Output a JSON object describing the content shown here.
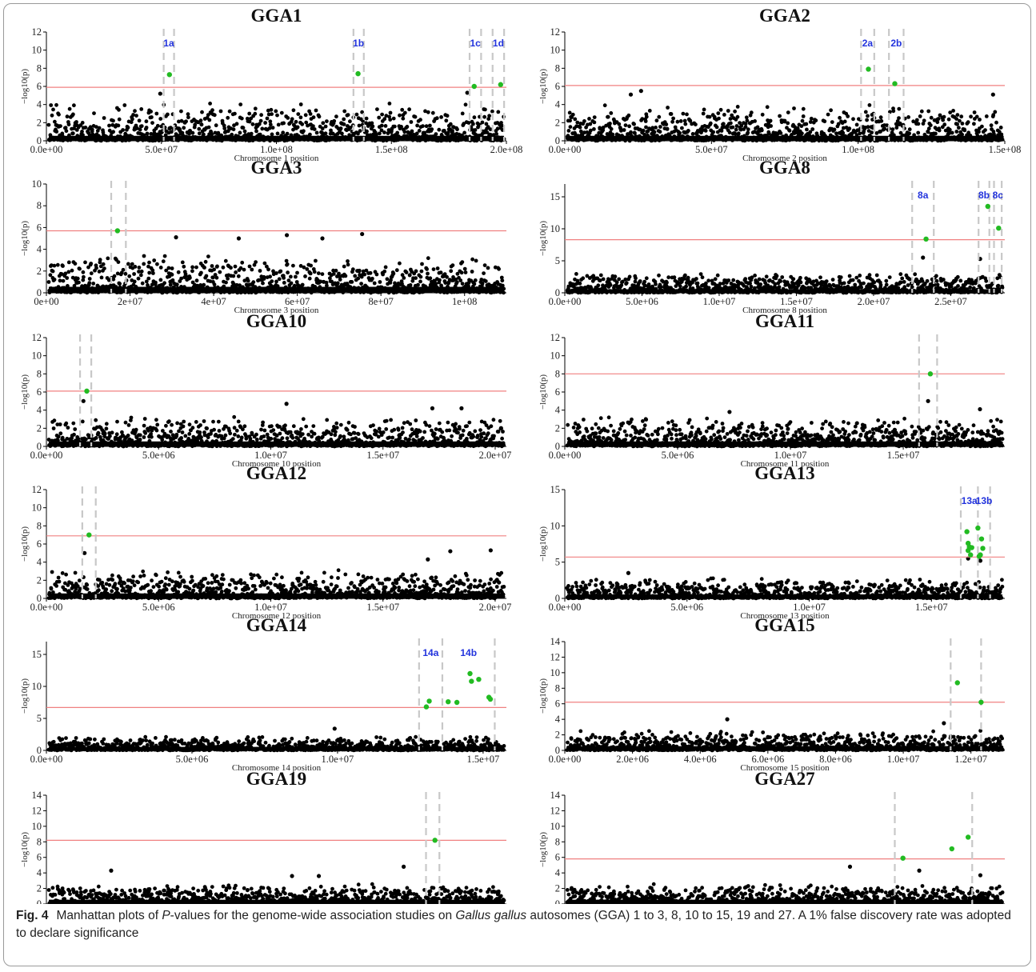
{
  "colors": {
    "points": "#000000",
    "significant": "#22bb22",
    "threshold": "#f08080",
    "region_line": "#c8c8c8",
    "region_label": "#2233dd"
  },
  "caption": {
    "label": "Fig. 4",
    "text_before": "Manhattan plots of ",
    "p_italic": "P",
    "text_mid": "-values for the genome-wide association studies on ",
    "species_italic": "Gallus gallus",
    "text_after": " autosomes (GGA) 1 to 3, 8, 10 to 15, 19 and 27. A 1% false discovery rate was adopted to declare significance"
  },
  "chart_data": [
    {
      "type": "scatter",
      "title": "GGA1",
      "xlabel": "Chromosome 1 position",
      "ylabel": "−log10(p)",
      "xlim": [
        0,
        200000000
      ],
      "ylim": [
        0,
        12
      ],
      "xticks": [
        0,
        50000000,
        100000000,
        150000000,
        200000000
      ],
      "xtick_labels": [
        "0.0e+00",
        "5.0e+07",
        "1.0e+08",
        "1.5e+08",
        "2.0e+08"
      ],
      "yticks": [
        0,
        2,
        4,
        6,
        8,
        10,
        12
      ],
      "threshold": 5.9,
      "background_max": 4.2,
      "region_lines": [
        51000000,
        55500000,
        133500000,
        138000000,
        184000000,
        189000000,
        194000000,
        199000000
      ],
      "region_labels": [
        {
          "text": "1a",
          "x": 53200000
        },
        {
          "text": "1b",
          "x": 135700000
        },
        {
          "text": "1c",
          "x": 186500000
        },
        {
          "text": "1d",
          "x": 196500000
        }
      ],
      "peaks": [
        {
          "x": 49500000,
          "y": 5.2
        },
        {
          "x": 183000000,
          "y": 5.3
        }
      ],
      "significant": [
        {
          "x": 53500000,
          "y": 7.3
        },
        {
          "x": 135500000,
          "y": 7.4
        },
        {
          "x": 186000000,
          "y": 6.0
        },
        {
          "x": 197500000,
          "y": 6.2
        }
      ]
    },
    {
      "type": "scatter",
      "title": "GGA2",
      "xlabel": "Chromosome 2 position",
      "ylabel": "−log10(p)",
      "xlim": [
        0,
        150000000
      ],
      "ylim": [
        0,
        12
      ],
      "xticks": [
        0,
        50000000,
        100000000,
        150000000
      ],
      "xtick_labels": [
        "0.0e+00",
        "5.0e+07",
        "1.0e+08",
        "1.5e+08"
      ],
      "yticks": [
        0,
        2,
        4,
        6,
        8,
        10,
        12
      ],
      "threshold": 6.1,
      "background_max": 4.0,
      "region_lines": [
        101000000,
        105500000,
        110500000,
        115500000
      ],
      "region_labels": [
        {
          "text": "2a",
          "x": 103200000
        },
        {
          "text": "2b",
          "x": 113000000
        }
      ],
      "peaks": [
        {
          "x": 26000000,
          "y": 5.5
        },
        {
          "x": 22500000,
          "y": 5.1
        },
        {
          "x": 146000000,
          "y": 5.1
        }
      ],
      "significant": [
        {
          "x": 103500000,
          "y": 7.9
        },
        {
          "x": 112500000,
          "y": 6.3
        }
      ]
    },
    {
      "type": "scatter",
      "title": "GGA3",
      "xlabel": "Chromosome 3 position",
      "ylabel": "−log10(p)",
      "xlim": [
        0,
        110000000
      ],
      "ylim": [
        0,
        10
      ],
      "xticks": [
        0,
        20000000,
        40000000,
        60000000,
        80000000,
        100000000
      ],
      "xtick_labels": [
        "0e+00",
        "2e+07",
        "4e+07",
        "6e+07",
        "8e+07",
        "1e+08"
      ],
      "yticks": [
        0,
        2,
        4,
        6,
        8,
        10
      ],
      "threshold": 5.7,
      "background_max": 3.6,
      "region_lines": [
        15500000,
        19000000
      ],
      "region_labels": [],
      "peaks": [
        {
          "x": 31000000,
          "y": 5.1
        },
        {
          "x": 46000000,
          "y": 5.0
        },
        {
          "x": 57500000,
          "y": 5.3
        },
        {
          "x": 66000000,
          "y": 5.0
        },
        {
          "x": 75500000,
          "y": 5.4
        }
      ],
      "significant": [
        {
          "x": 17000000,
          "y": 5.7
        }
      ]
    },
    {
      "type": "scatter",
      "title": "GGA8",
      "xlabel": "Chromosome 8 position",
      "ylabel": "−log10(p)",
      "xlim": [
        0,
        28500000
      ],
      "ylim": [
        0,
        17
      ],
      "xticks": [
        0,
        5000000,
        10000000,
        15000000,
        20000000,
        25000000
      ],
      "xtick_labels": [
        "0.0e+00",
        "5.0e+06",
        "1.0e+07",
        "1.5e+07",
        "2.0e+07",
        "2.5e+07"
      ],
      "yticks": [
        0,
        5,
        10,
        15
      ],
      "threshold": 8.3,
      "background_max": 3.2,
      "region_lines": [
        22500000,
        23900000,
        26800000,
        27500000,
        27800000,
        28300000
      ],
      "region_labels": [
        {
          "text": "8a",
          "x": 23200000
        },
        {
          "text": "8b",
          "x": 27150000
        },
        {
          "text": "8c",
          "x": 28050000
        }
      ],
      "peaks": [
        {
          "x": 23200000,
          "y": 5.5
        },
        {
          "x": 26900000,
          "y": 5.3
        }
      ],
      "significant": [
        {
          "x": 23400000,
          "y": 8.4
        },
        {
          "x": 27400000,
          "y": 13.5
        },
        {
          "x": 28100000,
          "y": 10.1
        }
      ]
    },
    {
      "type": "scatter",
      "title": "GGA10",
      "xlabel": "Chromosome 10 position",
      "ylabel": "−log10(p)",
      "xlim": [
        0,
        20500000
      ],
      "ylim": [
        0,
        12
      ],
      "xticks": [
        0,
        5000000,
        10000000,
        15000000,
        20000000
      ],
      "xtick_labels": [
        "0.0e+00",
        "5.0e+06",
        "1.0e+07",
        "1.5e+07",
        "2.0e+07"
      ],
      "yticks": [
        0,
        2,
        4,
        6,
        8,
        10,
        12
      ],
      "threshold": 6.1,
      "background_max": 3.2,
      "region_lines": [
        1500000,
        2000000
      ],
      "region_labels": [],
      "peaks": [
        {
          "x": 1650000,
          "y": 5.0
        },
        {
          "x": 10700000,
          "y": 4.7
        },
        {
          "x": 17200000,
          "y": 4.2
        },
        {
          "x": 18500000,
          "y": 4.2
        }
      ],
      "significant": [
        {
          "x": 1800000,
          "y": 6.1
        }
      ]
    },
    {
      "type": "scatter",
      "title": "GGA11",
      "xlabel": "Chromosome 11 position",
      "ylabel": "−log10(p)",
      "xlim": [
        0,
        19500000
      ],
      "ylim": [
        0,
        12
      ],
      "xticks": [
        0,
        5000000,
        10000000,
        15000000
      ],
      "xtick_labels": [
        "0.0e+00",
        "5.0e+06",
        "1.0e+07",
        "1.5e+07"
      ],
      "yticks": [
        0,
        2,
        4,
        6,
        8,
        10,
        12
      ],
      "threshold": 8.0,
      "background_max": 3.2,
      "region_lines": [
        15700000,
        16500000
      ],
      "region_labels": [],
      "peaks": [
        {
          "x": 16100000,
          "y": 5.0
        },
        {
          "x": 18400000,
          "y": 4.1
        },
        {
          "x": 7300000,
          "y": 3.8
        }
      ],
      "significant": [
        {
          "x": 16200000,
          "y": 8.0
        }
      ]
    },
    {
      "type": "scatter",
      "title": "GGA12",
      "xlabel": "Chromosome 12 position",
      "ylabel": "−log10(p)",
      "xlim": [
        0,
        20500000
      ],
      "ylim": [
        0,
        12
      ],
      "xticks": [
        0,
        5000000,
        10000000,
        15000000,
        20000000
      ],
      "xtick_labels": [
        "0.0e+00",
        "5.0e+06",
        "1.0e+07",
        "1.5e+07",
        "2.0e+07"
      ],
      "yticks": [
        0,
        2,
        4,
        6,
        8,
        10,
        12
      ],
      "threshold": 6.9,
      "background_max": 3.2,
      "region_lines": [
        1600000,
        2200000
      ],
      "region_labels": [],
      "peaks": [
        {
          "x": 1700000,
          "y": 5.0
        },
        {
          "x": 18000000,
          "y": 5.2
        },
        {
          "x": 19800000,
          "y": 5.3
        },
        {
          "x": 17000000,
          "y": 4.3
        }
      ],
      "significant": [
        {
          "x": 1900000,
          "y": 7.0
        }
      ]
    },
    {
      "type": "scatter",
      "title": "GGA13",
      "xlabel": "Chromosome 13 position",
      "ylabel": "−log10(p)",
      "xlim": [
        0,
        18000000
      ],
      "ylim": [
        0,
        15
      ],
      "xticks": [
        0,
        5000000,
        10000000,
        15000000
      ],
      "xtick_labels": [
        "0.0e+00",
        "5.0e+06",
        "1.0e+07",
        "1.5e+07"
      ],
      "yticks": [
        0,
        5,
        10,
        15
      ],
      "threshold": 5.7,
      "background_max": 2.8,
      "region_lines": [
        16200000,
        16900000,
        17400000
      ],
      "region_labels": [
        {
          "text": "13a",
          "x": 16550000
        },
        {
          "text": "13b",
          "x": 17150000
        }
      ],
      "peaks": [
        {
          "x": 16500000,
          "y": 5.5
        },
        {
          "x": 17000000,
          "y": 5.2
        },
        {
          "x": 2600000,
          "y": 3.5
        }
      ],
      "significant": [
        {
          "x": 16450000,
          "y": 9.2
        },
        {
          "x": 16500000,
          "y": 7.6
        },
        {
          "x": 16550000,
          "y": 7.1
        },
        {
          "x": 16650000,
          "y": 7.0
        },
        {
          "x": 16500000,
          "y": 6.6
        },
        {
          "x": 16600000,
          "y": 6.0
        },
        {
          "x": 16900000,
          "y": 9.7
        },
        {
          "x": 17050000,
          "y": 8.2
        },
        {
          "x": 17100000,
          "y": 6.9
        },
        {
          "x": 17000000,
          "y": 6.0
        },
        {
          "x": 16950000,
          "y": 5.8
        }
      ]
    },
    {
      "type": "scatter",
      "title": "GGA14",
      "xlabel": "Chromosome 14 position",
      "ylabel": "−log10(p)",
      "xlim": [
        0,
        15800000
      ],
      "ylim": [
        0,
        17
      ],
      "xticks": [
        0,
        5000000,
        10000000,
        15000000
      ],
      "xtick_labels": [
        "0.0e+00",
        "5.0e+06",
        "1.0e+07",
        "1.5e+07"
      ],
      "yticks": [
        0,
        5,
        10,
        15
      ],
      "threshold": 6.7,
      "background_max": 2.2,
      "region_lines": [
        12800000,
        13600000,
        15400000
      ],
      "region_labels": [
        {
          "text": "14a",
          "x": 13200000
        },
        {
          "text": "14b",
          "x": 14500000
        }
      ],
      "peaks": [
        {
          "x": 9900000,
          "y": 3.4
        }
      ],
      "significant": [
        {
          "x": 13050000,
          "y": 6.8
        },
        {
          "x": 13150000,
          "y": 7.7
        },
        {
          "x": 13800000,
          "y": 7.6
        },
        {
          "x": 14100000,
          "y": 7.5
        },
        {
          "x": 14550000,
          "y": 12.0
        },
        {
          "x": 14600000,
          "y": 10.8
        },
        {
          "x": 14850000,
          "y": 11.1
        },
        {
          "x": 15200000,
          "y": 8.3
        },
        {
          "x": 15250000,
          "y": 8.0
        }
      ]
    },
    {
      "type": "scatter",
      "title": "GGA15",
      "xlabel": "Chromosome 15 position",
      "ylabel": "−log10(p)",
      "xlim": [
        0,
        13000000
      ],
      "ylim": [
        0,
        14
      ],
      "xticks": [
        0,
        2000000,
        4000000,
        6000000,
        8000000,
        10000000,
        12000000
      ],
      "xtick_labels": [
        "0.0e+00",
        "2.0e+06",
        "4.0e+06",
        "6.0e+06",
        "8.0e+06",
        "1.0e+07",
        "1.2e+07"
      ],
      "yticks": [
        0,
        2,
        4,
        6,
        8,
        10,
        12,
        14
      ],
      "threshold": 6.2,
      "background_max": 2.5,
      "region_lines": [
        11400000,
        12300000
      ],
      "region_labels": [],
      "peaks": [
        {
          "x": 4800000,
          "y": 4.0
        },
        {
          "x": 11200000,
          "y": 3.5
        }
      ],
      "significant": [
        {
          "x": 11600000,
          "y": 8.7
        },
        {
          "x": 12300000,
          "y": 6.2
        }
      ]
    },
    {
      "type": "scatter",
      "title": "GGA19",
      "xlabel": "Chromosome 19 position",
      "ylabel": "−log10(p)",
      "xlim": [
        0,
        10300000
      ],
      "ylim": [
        0,
        14
      ],
      "xticks": [
        0,
        2000000,
        4000000,
        6000000,
        8000000,
        10000000
      ],
      "xtick_labels": [
        "0e+00",
        "2e+06",
        "4e+06",
        "6e+06",
        "8e+06",
        "1e+07"
      ],
      "yticks": [
        0,
        2,
        4,
        6,
        8,
        10,
        12,
        14
      ],
      "threshold": 8.2,
      "background_max": 2.6,
      "region_lines": [
        8500000,
        8800000
      ],
      "region_labels": [],
      "peaks": [
        {
          "x": 1450000,
          "y": 4.3
        },
        {
          "x": 8000000,
          "y": 4.8
        },
        {
          "x": 5500000,
          "y": 3.6
        },
        {
          "x": 6100000,
          "y": 3.6
        }
      ],
      "significant": [
        {
          "x": 8700000,
          "y": 8.2
        }
      ]
    },
    {
      "type": "scatter",
      "title": "GGA27",
      "xlabel": "Chromosome 27 position",
      "ylabel": "−log10(p)",
      "xlim": [
        0,
        5400000
      ],
      "ylim": [
        0,
        14
      ],
      "xticks": [
        0,
        1000000,
        2000000,
        3000000,
        4000000,
        5000000
      ],
      "xtick_labels": [
        "0e+00",
        "1e+06",
        "2e+06",
        "3e+06",
        "4e+06",
        "5e+06"
      ],
      "yticks": [
        0,
        2,
        4,
        6,
        8,
        10,
        12,
        14
      ],
      "threshold": 5.8,
      "background_max": 2.5,
      "region_lines": [
        4050000,
        5000000
      ],
      "region_labels": [],
      "peaks": [
        {
          "x": 3500000,
          "y": 4.8
        },
        {
          "x": 4350000,
          "y": 4.3
        },
        {
          "x": 5100000,
          "y": 3.7
        }
      ],
      "significant": [
        {
          "x": 4150000,
          "y": 5.9
        },
        {
          "x": 4750000,
          "y": 7.1
        },
        {
          "x": 4950000,
          "y": 8.6
        }
      ]
    }
  ]
}
